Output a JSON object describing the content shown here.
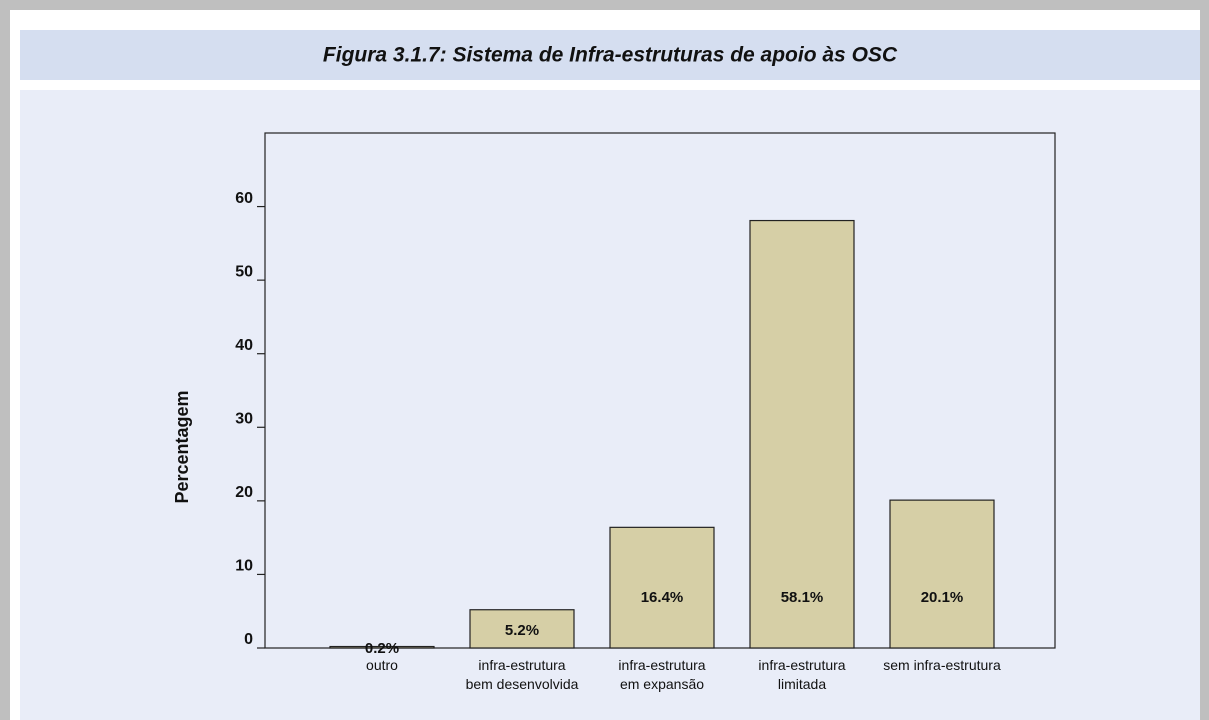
{
  "chart_data": {
    "type": "bar",
    "title": "Figura 3.1.7: Sistema de Infra-estruturas de apoio às OSC",
    "y_label": "Percentagem",
    "categories": [
      "outro",
      "infra-estrutura\nbem desenvolvida",
      "infra-estrutura\nem expansão",
      "infra-estrutura\nlimitada",
      "sem infra-estrutura"
    ],
    "values": [
      0.2,
      5.2,
      16.4,
      58.1,
      20.1
    ],
    "value_labels": [
      "0.2%",
      "5.2%",
      "16.4%",
      "58.1%",
      "20.1%"
    ],
    "color": "#d6cfa6",
    "ylim": [
      0,
      70
    ],
    "yticks": [
      0,
      10,
      20,
      30,
      40,
      50,
      60
    ]
  }
}
